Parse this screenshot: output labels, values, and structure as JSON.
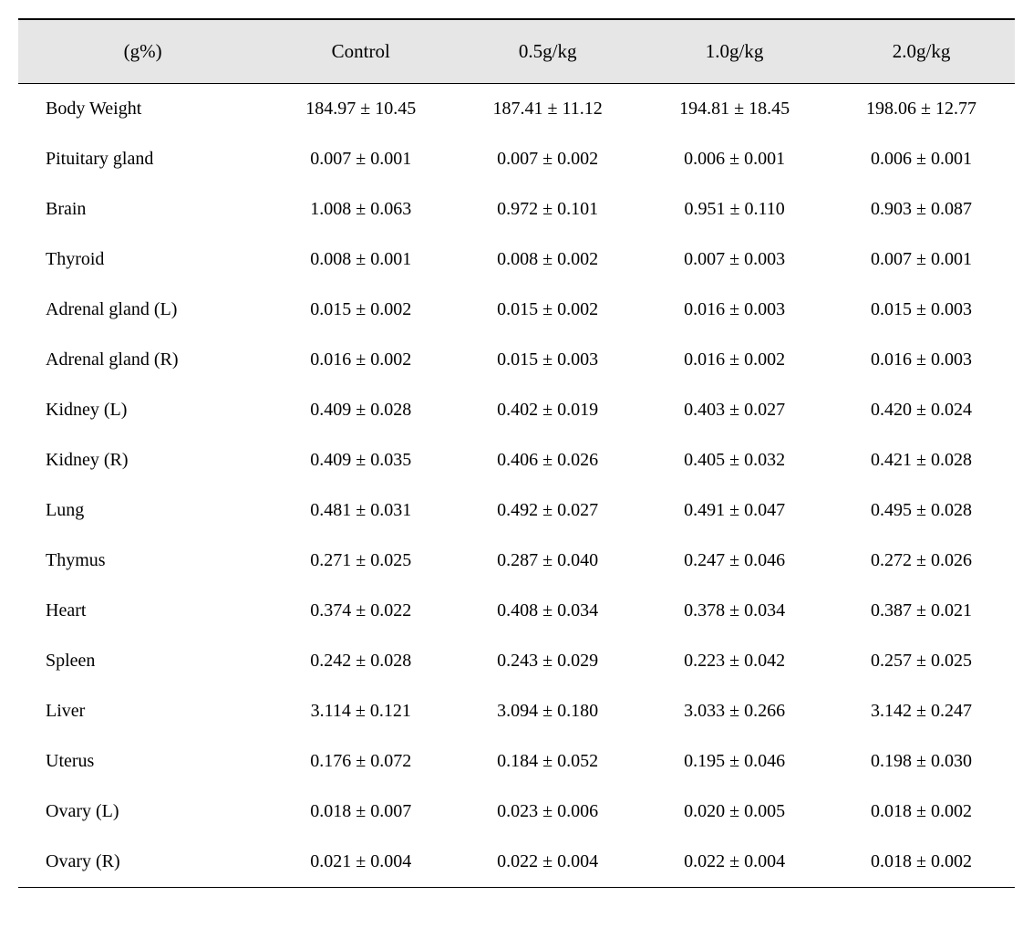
{
  "table": {
    "background_color": "#ffffff",
    "header_bg": "#e6e6e6",
    "border_color": "#000000",
    "font_family": "serif",
    "header_fontsize": 21,
    "body_fontsize": 20,
    "columns": [
      "(g%)",
      "Control",
      "0.5g/kg",
      "1.0g/kg",
      "2.0g/kg"
    ],
    "rows": [
      [
        "Body Weight",
        "184.97 ± 10.45",
        "187.41 ± 11.12",
        "194.81 ± 18.45",
        "198.06 ± 12.77"
      ],
      [
        "Pituitary gland",
        "0.007 ± 0.001",
        "0.007 ± 0.002",
        "0.006 ± 0.001",
        "0.006 ± 0.001"
      ],
      [
        "Brain",
        "1.008 ± 0.063",
        "0.972 ± 0.101",
        "0.951 ± 0.110",
        "0.903 ± 0.087"
      ],
      [
        "Thyroid",
        "0.008 ± 0.001",
        "0.008 ± 0.002",
        "0.007 ± 0.003",
        "0.007 ± 0.001"
      ],
      [
        "Adrenal gland (L)",
        "0.015 ± 0.002",
        "0.015 ± 0.002",
        "0.016 ± 0.003",
        "0.015 ± 0.003"
      ],
      [
        "Adrenal gland (R)",
        "0.016 ± 0.002",
        "0.015 ± 0.003",
        "0.016 ± 0.002",
        "0.016 ± 0.003"
      ],
      [
        "Kidney (L)",
        "0.409 ± 0.028",
        "0.402 ± 0.019",
        "0.403 ± 0.027",
        "0.420 ± 0.024"
      ],
      [
        "Kidney (R)",
        "0.409 ± 0.035",
        "0.406 ± 0.026",
        "0.405 ± 0.032",
        "0.421 ± 0.028"
      ],
      [
        "Lung",
        "0.481 ± 0.031",
        "0.492 ± 0.027",
        "0.491 ± 0.047",
        "0.495 ± 0.028"
      ],
      [
        "Thymus",
        "0.271 ± 0.025",
        "0.287 ± 0.040",
        "0.247 ± 0.046",
        "0.272 ± 0.026"
      ],
      [
        "Heart",
        "0.374 ± 0.022",
        "0.408 ± 0.034",
        "0.378 ± 0.034",
        "0.387 ± 0.021"
      ],
      [
        "Spleen",
        "0.242 ± 0.028",
        "0.243 ± 0.029",
        "0.223 ± 0.042",
        "0.257 ± 0.025"
      ],
      [
        "Liver",
        "3.114 ± 0.121",
        "3.094 ± 0.180",
        "3.033 ± 0.266",
        "3.142 ± 0.247"
      ],
      [
        "Uterus",
        "0.176 ± 0.072",
        "0.184 ± 0.052",
        "0.195 ± 0.046",
        "0.198 ± 0.030"
      ],
      [
        "Ovary (L)",
        "0.018 ± 0.007",
        "0.023 ± 0.006",
        "0.020 ± 0.005",
        "0.018 ± 0.002"
      ],
      [
        "Ovary (R)",
        "0.021 ± 0.004",
        "0.022 ± 0.004",
        "0.022 ± 0.004",
        "0.018 ± 0.002"
      ]
    ]
  }
}
